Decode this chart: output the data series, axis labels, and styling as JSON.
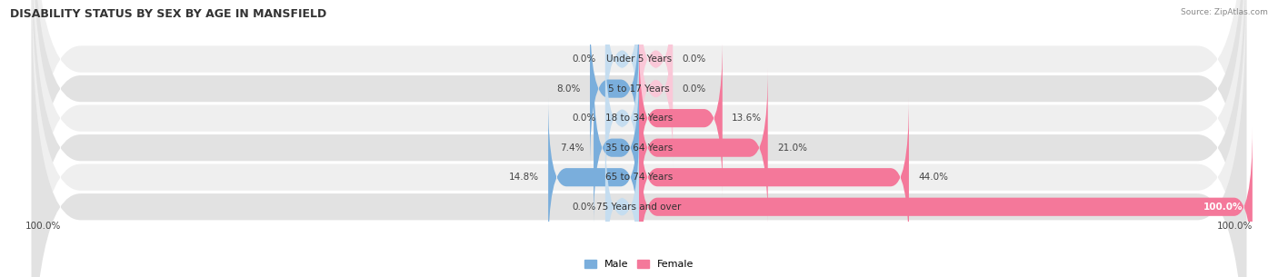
{
  "title": "DISABILITY STATUS BY SEX BY AGE IN MANSFIELD",
  "source": "Source: ZipAtlas.com",
  "categories": [
    "Under 5 Years",
    "5 to 17 Years",
    "18 to 34 Years",
    "35 to 64 Years",
    "65 to 74 Years",
    "75 Years and over"
  ],
  "male_values": [
    0.0,
    8.0,
    0.0,
    7.4,
    14.8,
    0.0
  ],
  "female_values": [
    0.0,
    0.0,
    13.6,
    21.0,
    44.0,
    100.0
  ],
  "male_color": "#7aaedc",
  "female_color": "#f4789a",
  "male_light_color": "#c5ddf0",
  "female_light_color": "#fac8d8",
  "row_bg_odd": "#efefef",
  "row_bg_even": "#e2e2e2",
  "max_value": 100.0,
  "title_fontsize": 9,
  "label_fontsize": 7.5,
  "category_fontsize": 7.5,
  "legend_fontsize": 8,
  "axis_label_fontsize": 7.5
}
